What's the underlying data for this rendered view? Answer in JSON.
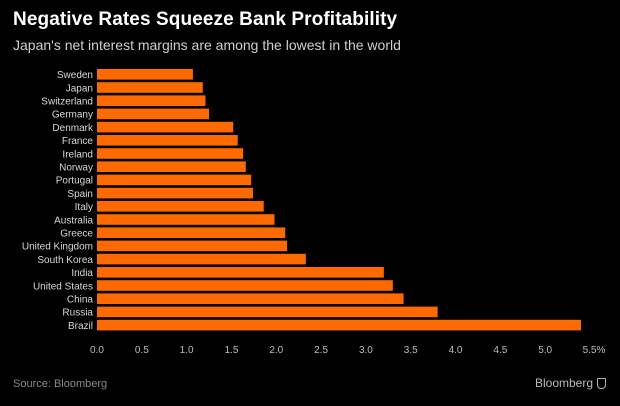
{
  "chart_data": {
    "type": "bar",
    "orientation": "horizontal",
    "title": "Negative Rates Squeeze Bank Profitability",
    "subtitle": "Japan's net interest margins are among the lowest in the world",
    "categories": [
      "Sweden",
      "Japan",
      "Switzerland",
      "Germany",
      "Denmark",
      "France",
      "Ireland",
      "Norway",
      "Portugal",
      "Spain",
      "Italy",
      "Australia",
      "Greece",
      "United Kingdom",
      "South Korea",
      "India",
      "United States",
      "China",
      "Russia",
      "Brazil"
    ],
    "values": [
      1.07,
      1.18,
      1.21,
      1.25,
      1.52,
      1.57,
      1.63,
      1.66,
      1.72,
      1.74,
      1.86,
      1.98,
      2.1,
      2.12,
      2.33,
      3.2,
      3.3,
      3.42,
      3.8,
      5.4
    ],
    "xlim": [
      0,
      5.5
    ],
    "xticks": [
      "0.0",
      "0.5",
      "1.0",
      "1.5",
      "2.0",
      "2.5",
      "3.0",
      "3.5",
      "4.0",
      "4.5",
      "5.0",
      "5.5%"
    ],
    "xlabel": "",
    "ylabel": "",
    "grid": false,
    "legend": "none",
    "bar_color": "#ff6a00"
  },
  "footer": {
    "source": "Source: Bloomberg",
    "brand": "Bloomberg"
  }
}
